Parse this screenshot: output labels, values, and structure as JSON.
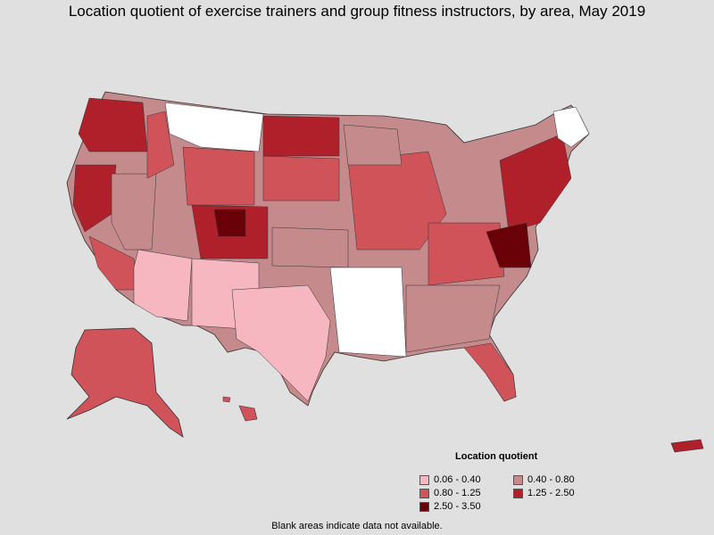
{
  "title": "Location quotient of exercise trainers and group fitness instructors, by area, May 2019",
  "legend": {
    "title": "Location quotient",
    "items": [
      {
        "label": "0.06 - 0.40",
        "color": "#f6b7c0"
      },
      {
        "label": "0.40 - 0.80",
        "color": "#c48a8c"
      },
      {
        "label": "0.80 - 1.25",
        "color": "#d0535a"
      },
      {
        "label": "1.25 - 2.50",
        "color": "#b0202a"
      },
      {
        "label": "2.50 - 3.50",
        "color": "#6a0008"
      }
    ]
  },
  "footnote": "Blank areas indicate data not available.",
  "colors": {
    "background": "#e0e0e0",
    "no_data": "#ffffff",
    "border": "#333333"
  }
}
